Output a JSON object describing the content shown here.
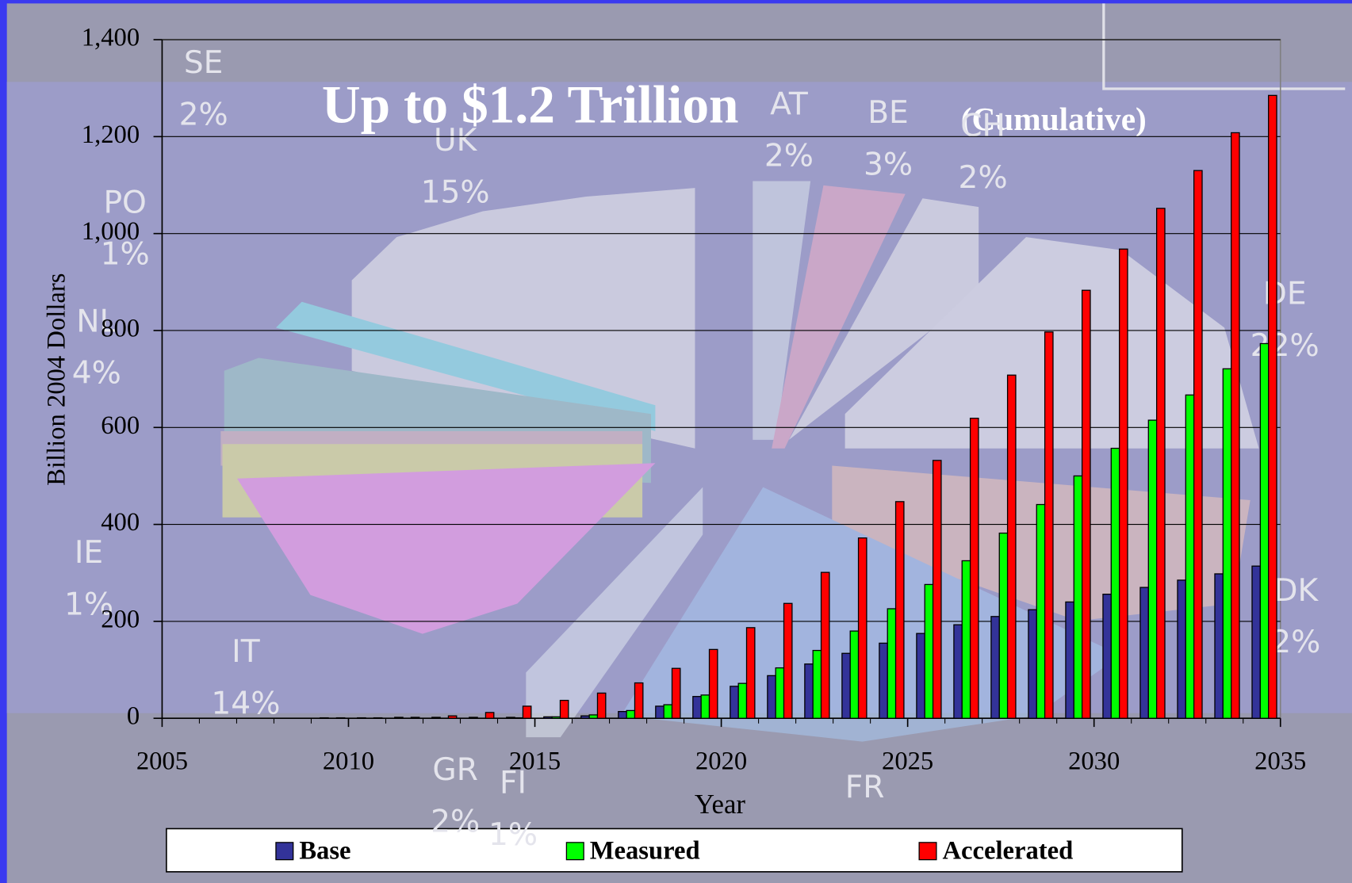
{
  "chart_data": {
    "type": "bar",
    "title": "Up to $1.2 Trillion",
    "annotation": "(Cumulative)",
    "y_label": "Billion 2004 Dollars",
    "x_label": "Year",
    "x": [
      2006,
      2007,
      2008,
      2009,
      2010,
      2011,
      2012,
      2013,
      2014,
      2015,
      2016,
      2017,
      2018,
      2019,
      2020,
      2021,
      2022,
      2023,
      2024,
      2025,
      2026,
      2027,
      2028,
      2029,
      2030,
      2031,
      2032,
      2033,
      2034,
      2035
    ],
    "series": [
      {
        "name": "Base",
        "color": "#333399",
        "values": [
          0,
          0,
          0,
          0,
          1,
          1,
          2,
          2,
          2,
          2,
          3,
          5,
          14,
          25,
          45,
          66,
          88,
          112,
          134,
          155,
          175,
          193,
          210,
          224,
          240,
          256,
          270,
          285,
          298,
          314
        ]
      },
      {
        "name": "Measured",
        "color": "#00ff00",
        "values": [
          0,
          0,
          0,
          0,
          0,
          0,
          0,
          0,
          0,
          1,
          3,
          7,
          16,
          28,
          48,
          72,
          104,
          140,
          180,
          226,
          276,
          325,
          382,
          441,
          500,
          557,
          615,
          667,
          721,
          773
        ]
      },
      {
        "name": "Accelerated",
        "color": "#ff0000",
        "values": [
          0,
          0,
          0,
          0,
          1,
          1,
          2,
          5,
          12,
          25,
          37,
          52,
          73,
          103,
          142,
          187,
          237,
          301,
          372,
          447,
          532,
          619,
          708,
          797,
          883,
          968,
          1052,
          1130,
          1208,
          1285
        ]
      }
    ],
    "xlim": [
      2005,
      2035
    ],
    "xticks": [
      2005,
      2010,
      2015,
      2020,
      2025,
      2030,
      2035
    ],
    "ylim": [
      0,
      1400
    ],
    "yticks": [
      0,
      200,
      400,
      600,
      800,
      {
        "value": 1000,
        "label": "1,000"
      },
      {
        "value": 1200,
        "label": "1,200"
      },
      {
        "value": 1400,
        "label": "1,400"
      }
    ],
    "grid": true,
    "legend": "bottom"
  },
  "background_pie": {
    "labels": [
      [
        "SE",
        "2%"
      ],
      [
        "UK",
        "15%"
      ],
      [
        "AT",
        "2%"
      ],
      [
        "BE",
        "3%"
      ],
      [
        "CH",
        "2%"
      ],
      [
        "PO",
        "1%"
      ],
      [
        "NL",
        "4%"
      ],
      [
        "DE",
        "22%"
      ],
      [
        "IE",
        "1%"
      ],
      [
        "IT",
        "14%"
      ],
      [
        "GR",
        "2%"
      ],
      [
        "FI",
        "1%"
      ],
      [
        "DK",
        "2%"
      ],
      [
        "FR"
      ]
    ]
  }
}
